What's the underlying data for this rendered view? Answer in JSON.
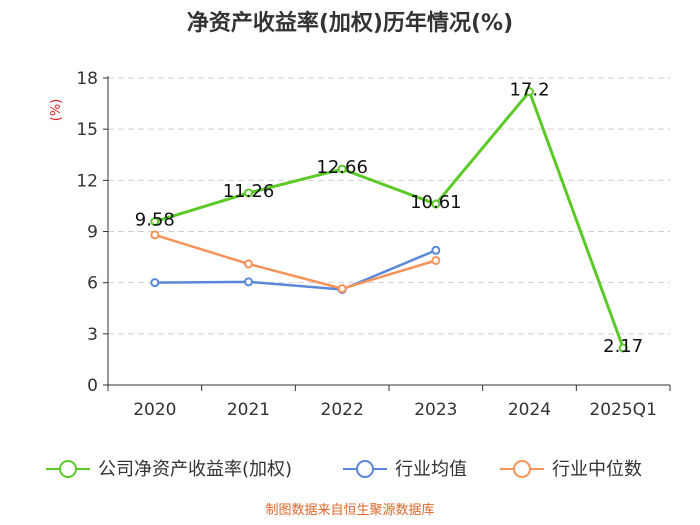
{
  "chart_data": {
    "type": "line",
    "title": "净资产收益率(加权)历年情况(%)",
    "ylabel": "(%)",
    "xlabel": "",
    "categories": [
      "2020",
      "2021",
      "2022",
      "2023",
      "2024",
      "2025Q1"
    ],
    "ylim": [
      0,
      18
    ],
    "yticks": [
      0,
      3,
      6,
      9,
      12,
      15,
      18
    ],
    "grid": true,
    "legend_position": "bottom",
    "series": [
      {
        "name": "公司净资产收益率(加权)",
        "color": "#5cc928",
        "values": [
          9.58,
          11.26,
          12.66,
          10.61,
          17.2,
          2.17
        ],
        "labels": [
          "9.58",
          "11.26",
          "12.66",
          "10.61",
          "17.2",
          "2.17"
        ]
      },
      {
        "name": "行业均值",
        "color": "#5b87d8",
        "values": [
          6.0,
          6.05,
          5.6,
          7.9,
          null,
          null
        ]
      },
      {
        "name": "行业中位数",
        "color": "#f5935a",
        "values": [
          8.8,
          7.1,
          5.65,
          7.3,
          null,
          null
        ]
      }
    ],
    "source": "制图数据来自恒生聚源数据库"
  }
}
